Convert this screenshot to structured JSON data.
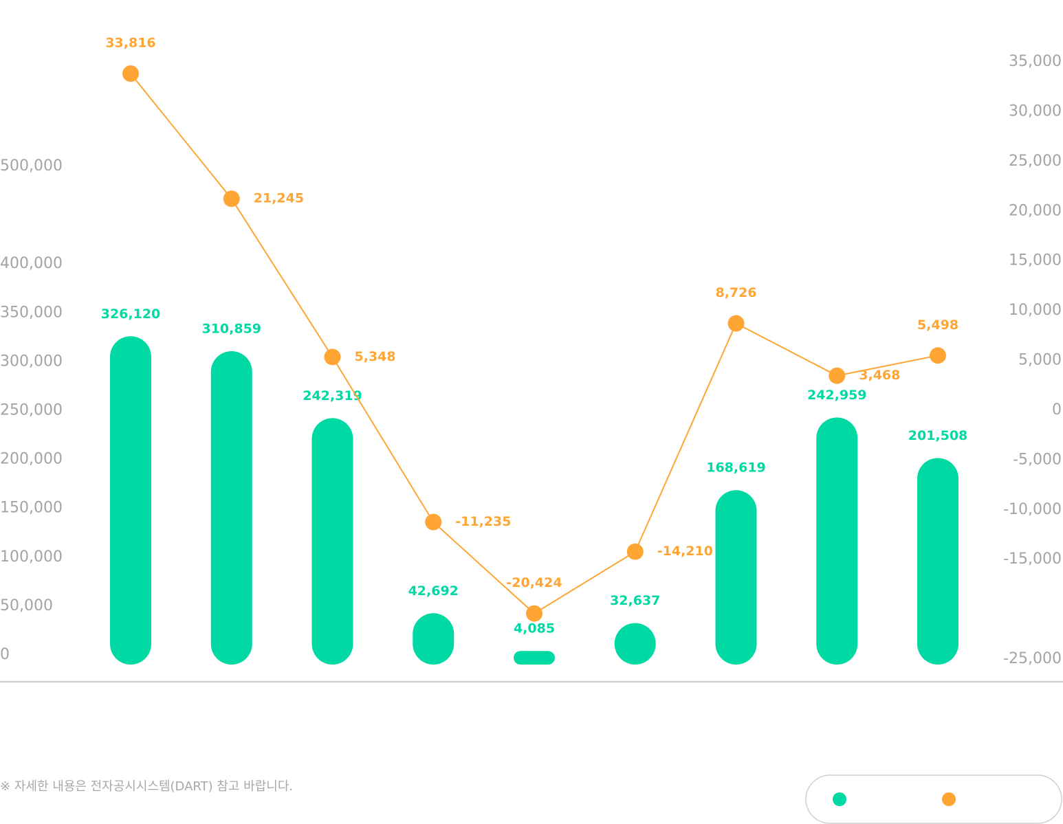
{
  "chart_data": {
    "type": "combo",
    "ylim": [
      0,
      500000
    ],
    "yticks": [
      0,
      {
        "value": 50000,
        "label": "50,000"
      },
      {
        "value": 100000,
        "label": "100,000"
      },
      {
        "value": 150000,
        "label": "150,000"
      },
      {
        "value": 200000,
        "label": "200,000"
      },
      {
        "value": 250000,
        "label": "250,000"
      },
      {
        "value": 300000,
        "label": "300,000"
      },
      {
        "value": 350000,
        "label": "350,000"
      },
      {
        "value": 400000,
        "label": "400,000"
      },
      {
        "value": 500000,
        "label": "500,000"
      }
    ],
    "y2lim": [
      -25000,
      35000
    ],
    "y2ticks": [
      {
        "value": 35000,
        "label": "35,000"
      },
      {
        "value": 30000,
        "label": "30,000"
      },
      {
        "value": 25000,
        "label": "25,000"
      },
      {
        "value": 20000,
        "label": "20,000"
      },
      {
        "value": 15000,
        "label": "15,000"
      },
      {
        "value": 10000,
        "label": "10,000"
      },
      {
        "value": 5000,
        "label": "5,000"
      },
      0,
      {
        "value": -5000,
        "label": "-5,000"
      },
      {
        "value": -10000,
        "label": "-10,000"
      },
      {
        "value": -15000,
        "label": "-15,000"
      },
      {
        "value": -25000,
        "label": "-25,000"
      }
    ],
    "grid": false,
    "series": [
      {
        "type": "bar",
        "color": "#00d9a3",
        "values": [
          326120,
          310859,
          242319,
          42692,
          4085,
          32637,
          168619,
          242959,
          201508
        ],
        "value_labels": [
          "326,120",
          "310,859",
          "242,319",
          "42,692",
          "4,085",
          "32,637",
          "168,619",
          "242,959",
          "201,508"
        ]
      },
      {
        "type": "line",
        "axis": "y2",
        "color": "#ffa534",
        "values": [
          33816,
          21245,
          5348,
          -11235,
          -20424,
          -14210,
          8726,
          3468,
          5498
        ],
        "value_labels": [
          "33,816",
          "21,245",
          "5,348",
          "-11,235",
          "-20,424",
          "-14,210",
          "8,726",
          "3,468",
          "5,498"
        ]
      }
    ],
    "footnote": "※ 자세한 내용은 전자공시시스템(DART) 참고 바랍니다."
  }
}
